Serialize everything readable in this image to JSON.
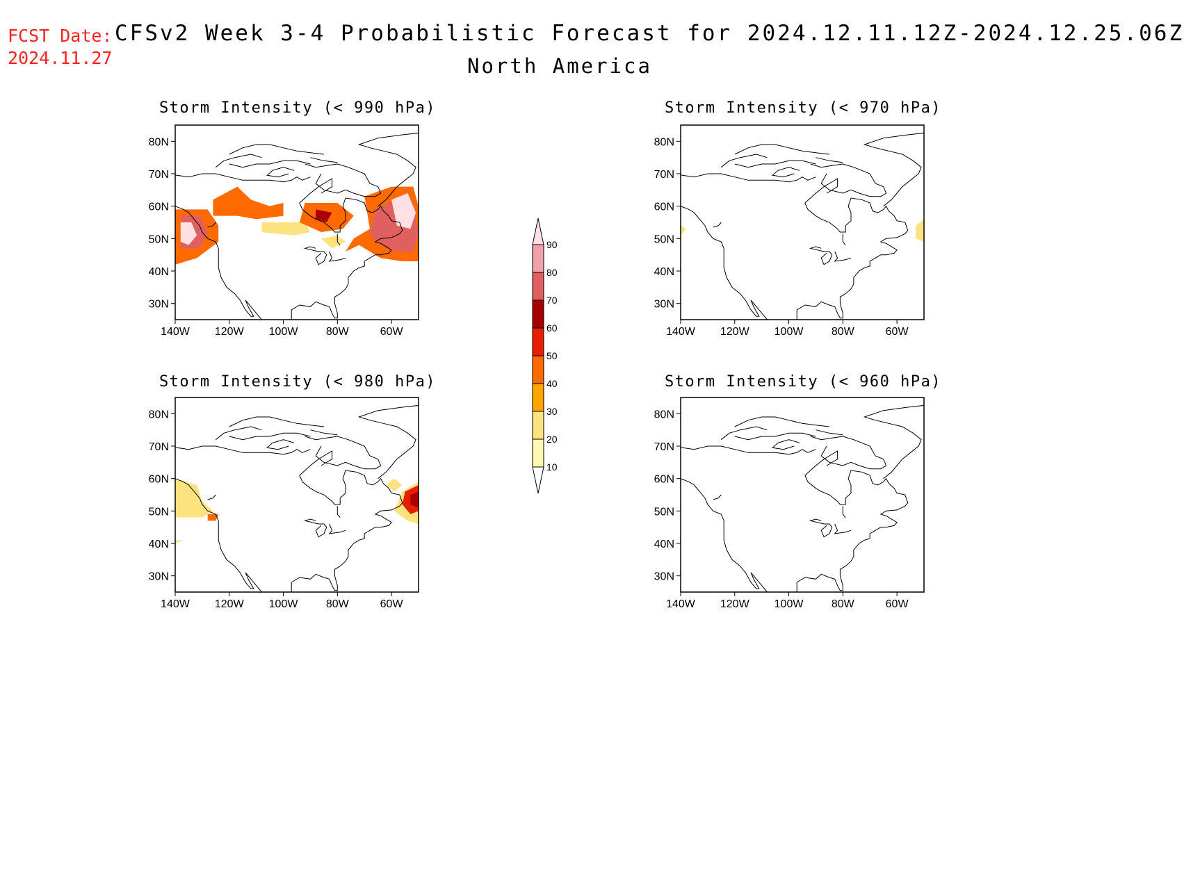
{
  "forecast_date": {
    "label": "FCST Date:",
    "value": "2024.11.27"
  },
  "title": "CFSv2 Week 3-4 Probabilistic Forecast for 2024.12.11.12Z-2024.12.25.06Z",
  "region": "North America",
  "colors": {
    "scale": [
      "#fff7b3",
      "#fde380",
      "#ffa500",
      "#ff6a00",
      "#e81e00",
      "#a80000",
      "#e06060",
      "#f0a0a8",
      "#ffe0e4"
    ]
  },
  "colorbar": {
    "levels": [
      "10",
      "20",
      "30",
      "40",
      "50",
      "60",
      "70",
      "80",
      "90"
    ]
  },
  "axes": {
    "lat_ticks": [
      "80N",
      "70N",
      "60N",
      "50N",
      "40N",
      "30N"
    ],
    "lon_ticks": [
      "140W",
      "120W",
      "100W",
      "80W",
      "60W"
    ]
  },
  "panels": [
    {
      "title": "Storm Intensity (< 990 hPa)",
      "regions": [
        {
          "level": 3,
          "poly": [
            [
              -140,
              59
            ],
            [
              -128,
              59
            ],
            [
              -124,
              54
            ],
            [
              -124,
              49
            ],
            [
              -132,
              44
            ],
            [
              -140,
              42
            ]
          ]
        },
        {
          "level": 6,
          "poly": [
            [
              -138,
              57
            ],
            [
              -131,
              57
            ],
            [
              -128,
              52
            ],
            [
              -131,
              47
            ],
            [
              -138,
              47
            ]
          ]
        },
        {
          "level": 8,
          "poly": [
            [
              -138,
              55
            ],
            [
              -134,
              55
            ],
            [
              -132,
              51
            ],
            [
              -135,
              48
            ],
            [
              -138,
              49
            ]
          ]
        },
        {
          "level": 3,
          "poly": [
            [
              -126,
              62
            ],
            [
              -117,
              66
            ],
            [
              -112,
              62
            ],
            [
              -105,
              60
            ],
            [
              -100,
              61
            ],
            [
              -100,
              57
            ],
            [
              -110,
              56
            ],
            [
              -117,
              57
            ],
            [
              -126,
              57
            ]
          ]
        },
        {
          "level": 1,
          "poly": [
            [
              -108,
              55
            ],
            [
              -92,
              55
            ],
            [
              -90,
              52
            ],
            [
              -96,
              51
            ],
            [
              -108,
              52
            ]
          ]
        },
        {
          "level": 3,
          "poly": [
            [
              -92,
              61
            ],
            [
              -80,
              61
            ],
            [
              -74,
              57
            ],
            [
              -78,
              53
            ],
            [
              -86,
              52
            ],
            [
              -94,
              55
            ]
          ]
        },
        {
          "level": 5,
          "poly": [
            [
              -88,
              59
            ],
            [
              -82,
              58
            ],
            [
              -84,
              55
            ],
            [
              -88,
              56
            ]
          ]
        },
        {
          "level": 3,
          "poly": [
            [
              -70,
              63
            ],
            [
              -60,
              66
            ],
            [
              -52,
              66
            ],
            [
              -50,
              60
            ],
            [
              -50,
              43
            ],
            [
              -56,
              43
            ],
            [
              -64,
              44
            ],
            [
              -68,
              46
            ],
            [
              -72,
              48
            ],
            [
              -77,
              46
            ],
            [
              -74,
              50
            ],
            [
              -68,
              53
            ]
          ]
        },
        {
          "level": 6,
          "poly": [
            [
              -66,
              59
            ],
            [
              -58,
              62
            ],
            [
              -52,
              61
            ],
            [
              -50,
              52
            ],
            [
              -52,
              46
            ],
            [
              -58,
              46
            ],
            [
              -64,
              48
            ],
            [
              -68,
              51
            ]
          ]
        },
        {
          "level": 8,
          "poly": [
            [
              -60,
              62
            ],
            [
              -54,
              64
            ],
            [
              -51,
              58
            ],
            [
              -53,
              53
            ],
            [
              -58,
              54
            ]
          ]
        },
        {
          "level": 1,
          "poly": [
            [
              -86,
              50
            ],
            [
              -80,
              51
            ],
            [
              -77,
              49
            ],
            [
              -82,
              47
            ]
          ]
        }
      ]
    },
    {
      "title": "Storm Intensity (< 970 hPa)",
      "regions": [
        {
          "level": 1,
          "poly": [
            [
              -53,
              54
            ],
            [
              -50,
              56
            ],
            [
              -50,
              49
            ],
            [
              -53,
              50
            ]
          ]
        },
        {
          "level": 1,
          "poly": [
            [
              -140,
              54
            ],
            [
              -138,
              53
            ],
            [
              -140,
              51
            ]
          ]
        }
      ]
    },
    {
      "title": "Storm Intensity (< 980 hPa)",
      "regions": [
        {
          "level": 1,
          "poly": [
            [
              -140,
              60
            ],
            [
              -132,
              58
            ],
            [
              -130,
              53
            ],
            [
              -126,
              50
            ],
            [
              -130,
              48
            ],
            [
              -140,
              48
            ]
          ]
        },
        {
          "level": 3,
          "poly": [
            [
              -128,
              49
            ],
            [
              -124,
              49
            ],
            [
              -125,
              47
            ],
            [
              -128,
              47
            ]
          ]
        },
        {
          "level": 1,
          "poly": [
            [
              -140,
              41
            ],
            [
              -137,
              41
            ],
            [
              -140,
              40
            ]
          ]
        },
        {
          "level": 1,
          "poly": [
            [
              -59,
              60
            ],
            [
              -56,
              58
            ],
            [
              -59,
              56
            ],
            [
              -62,
              58
            ]
          ]
        },
        {
          "level": 1,
          "poly": [
            [
              -56,
              56
            ],
            [
              -50,
              59
            ],
            [
              -50,
              46
            ],
            [
              -54,
              47
            ],
            [
              -59,
              50
            ]
          ]
        },
        {
          "level": 4,
          "poly": [
            [
              -55,
              56
            ],
            [
              -50,
              58
            ],
            [
              -50,
              50
            ],
            [
              -53,
              49
            ],
            [
              -56,
              52
            ]
          ]
        },
        {
          "level": 5,
          "poly": [
            [
              -53,
              55
            ],
            [
              -50,
              56
            ],
            [
              -50,
              51
            ],
            [
              -53,
              52
            ]
          ]
        }
      ]
    },
    {
      "title": "Storm Intensity (< 960 hPa)",
      "regions": []
    }
  ]
}
